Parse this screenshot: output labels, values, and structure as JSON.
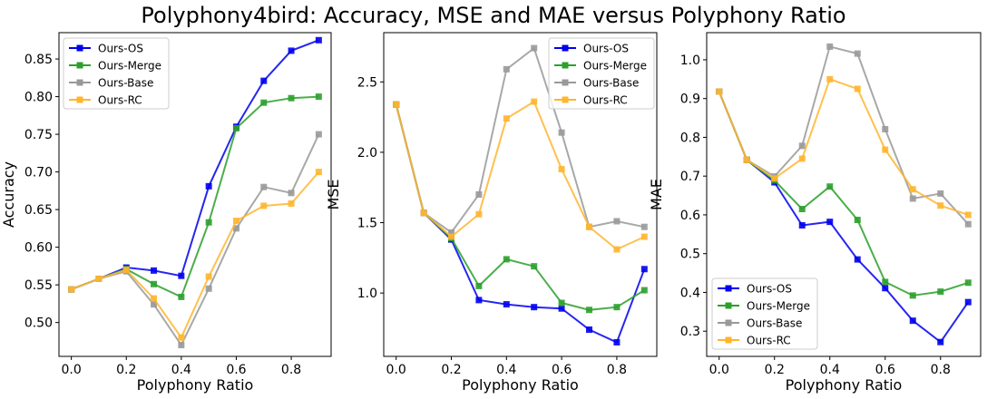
{
  "title": "Polyphony4bird: Accuracy, MSE and MAE versus Polyphony Ratio",
  "chart_data": [
    {
      "type": "line",
      "xlabel": "Polyphony Ratio",
      "ylabel": "Accuracy",
      "x": [
        0.0,
        0.1,
        0.2,
        0.3,
        0.4,
        0.5,
        0.6,
        0.7,
        0.8,
        0.9
      ],
      "xlim": [
        -0.045,
        0.945
      ],
      "ylim": [
        0.455,
        0.885
      ],
      "xticks": [
        0.0,
        0.2,
        0.4,
        0.6,
        0.8
      ],
      "xtick_labels": [
        "0.0",
        "0.2",
        "0.4",
        "0.6",
        "0.8"
      ],
      "yticks": [
        0.5,
        0.55,
        0.6,
        0.65,
        0.7,
        0.75,
        0.8,
        0.85
      ],
      "ytick_labels": [
        "0.50",
        "0.55",
        "0.60",
        "0.65",
        "0.70",
        "0.75",
        "0.80",
        "0.85"
      ],
      "legend": "upper left",
      "series": [
        {
          "name": "Ours-OS",
          "color": "#0000ee",
          "values": [
            0.544,
            0.558,
            0.573,
            0.569,
            0.562,
            0.681,
            0.76,
            0.821,
            0.861,
            0.875
          ]
        },
        {
          "name": "Ours-Merge",
          "color": "#2ca02c",
          "values": [
            0.544,
            0.558,
            0.571,
            0.551,
            0.534,
            0.633,
            0.758,
            0.792,
            0.798,
            0.8
          ]
        },
        {
          "name": "Ours-Base",
          "color": "#999999",
          "values": [
            0.544,
            0.558,
            0.568,
            0.524,
            0.47,
            0.545,
            0.625,
            0.68,
            0.672,
            0.75
          ]
        },
        {
          "name": "Ours-RC",
          "color": "#ffb52e",
          "values": [
            0.544,
            0.558,
            0.57,
            0.532,
            0.48,
            0.561,
            0.635,
            0.655,
            0.658,
            0.7
          ]
        }
      ]
    },
    {
      "type": "line",
      "xlabel": "Polyphony Ratio",
      "ylabel": "MSE",
      "x": [
        0.0,
        0.1,
        0.2,
        0.3,
        0.4,
        0.5,
        0.6,
        0.7,
        0.8,
        0.9
      ],
      "xlim": [
        -0.045,
        0.945
      ],
      "ylim": [
        0.55,
        2.85
      ],
      "xticks": [
        0.0,
        0.2,
        0.4,
        0.6,
        0.8
      ],
      "xtick_labels": [
        "0.0",
        "0.2",
        "0.4",
        "0.6",
        "0.8"
      ],
      "yticks": [
        1.0,
        1.5,
        2.0,
        2.5
      ],
      "ytick_labels": [
        "1.0",
        "1.5",
        "2.0",
        "2.5"
      ],
      "legend": "upper right",
      "series": [
        {
          "name": "Ours-OS",
          "color": "#0000ee",
          "values": [
            2.34,
            1.57,
            1.38,
            0.95,
            0.92,
            0.9,
            0.89,
            0.74,
            0.65,
            1.17
          ]
        },
        {
          "name": "Ours-Merge",
          "color": "#2ca02c",
          "values": [
            2.34,
            1.57,
            1.39,
            1.05,
            1.24,
            1.19,
            0.93,
            0.88,
            0.9,
            1.02
          ]
        },
        {
          "name": "Ours-Base",
          "color": "#999999",
          "values": [
            2.34,
            1.57,
            1.43,
            1.7,
            2.59,
            2.74,
            2.14,
            1.47,
            1.51,
            1.47
          ]
        },
        {
          "name": "Ours-RC",
          "color": "#ffb52e",
          "values": [
            2.34,
            1.57,
            1.4,
            1.56,
            2.24,
            2.36,
            1.88,
            1.47,
            1.31,
            1.4
          ]
        }
      ]
    },
    {
      "type": "line",
      "xlabel": "Polyphony Ratio",
      "ylabel": "MAE",
      "x": [
        0.0,
        0.1,
        0.2,
        0.3,
        0.4,
        0.5,
        0.6,
        0.7,
        0.8,
        0.9
      ],
      "xlim": [
        -0.045,
        0.945
      ],
      "ylim": [
        0.235,
        1.07
      ],
      "xticks": [
        0.0,
        0.2,
        0.4,
        0.6,
        0.8
      ],
      "xtick_labels": [
        "0.0",
        "0.2",
        "0.4",
        "0.6",
        "0.8"
      ],
      "yticks": [
        0.3,
        0.4,
        0.5,
        0.6,
        0.7,
        0.8,
        0.9,
        1.0
      ],
      "ytick_labels": [
        "0.3",
        "0.4",
        "0.5",
        "0.6",
        "0.7",
        "0.8",
        "0.9",
        "1.0"
      ],
      "legend": "lower left",
      "series": [
        {
          "name": "Ours-OS",
          "color": "#0000ee",
          "values": [
            0.918,
            0.742,
            0.684,
            0.573,
            0.582,
            0.485,
            0.411,
            0.327,
            0.272,
            0.375
          ]
        },
        {
          "name": "Ours-Merge",
          "color": "#2ca02c",
          "values": [
            0.918,
            0.742,
            0.689,
            0.615,
            0.673,
            0.587,
            0.427,
            0.392,
            0.402,
            0.425
          ]
        },
        {
          "name": "Ours-Base",
          "color": "#999999",
          "values": [
            0.918,
            0.742,
            0.699,
            0.778,
            1.034,
            1.016,
            0.821,
            0.642,
            0.655,
            0.576
          ]
        },
        {
          "name": "Ours-RC",
          "color": "#ffb52e",
          "values": [
            0.918,
            0.742,
            0.694,
            0.745,
            0.95,
            0.925,
            0.768,
            0.666,
            0.624,
            0.6
          ]
        }
      ]
    }
  ]
}
